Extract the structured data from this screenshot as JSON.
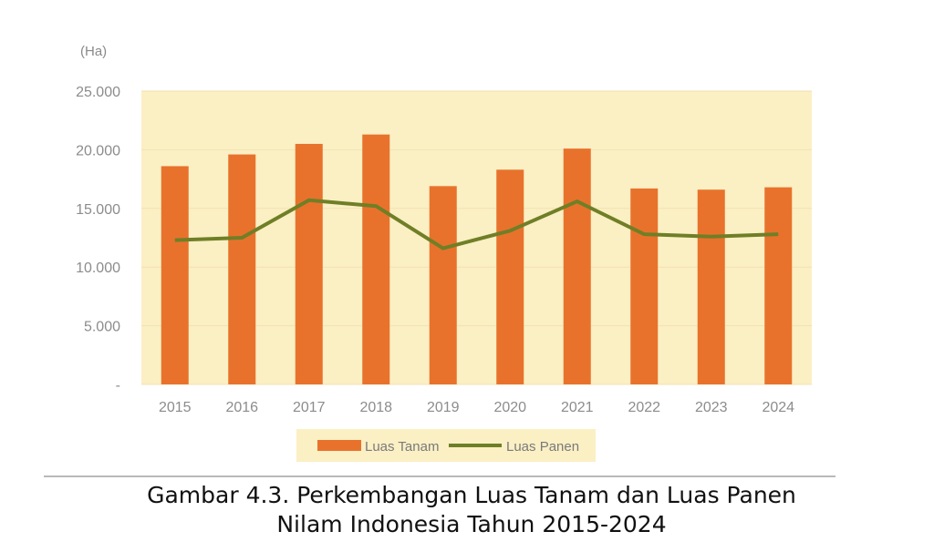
{
  "figure": {
    "unit_label": "(Ha)",
    "caption_line1": "Gambar 4.3. Perkembangan Luas Tanam dan Luas Panen",
    "caption_line2": "Nilam Indonesia Tahun 2015-2024"
  },
  "colors": {
    "plot_background": "#fbefc4",
    "bar": "#e8722c",
    "line": "#6f7f26",
    "legend_background": "#fbefc4",
    "gridline": "#f3e2b0"
  },
  "chart_data": {
    "type": "bar",
    "categories": [
      "2015",
      "2016",
      "2017",
      "2018",
      "2019",
      "2020",
      "2021",
      "2022",
      "2023",
      "2024"
    ],
    "ylim": [
      0,
      25000
    ],
    "yticks": [
      0,
      5000,
      10000,
      15000,
      20000,
      25000
    ],
    "ytick_labels": [
      "-",
      "5.000",
      "10.000",
      "15.000",
      "20.000",
      "25.000"
    ],
    "grid": true,
    "legend_position": "bottom",
    "series": [
      {
        "name": "Luas Tanam",
        "type": "bar",
        "values": [
          18600,
          19600,
          20500,
          21300,
          16900,
          18300,
          20100,
          16700,
          16600,
          16800
        ]
      },
      {
        "name": "Luas Panen",
        "type": "line",
        "values": [
          12300,
          12500,
          15700,
          15200,
          11600,
          13100,
          15600,
          12800,
          12600,
          12800
        ]
      }
    ]
  }
}
